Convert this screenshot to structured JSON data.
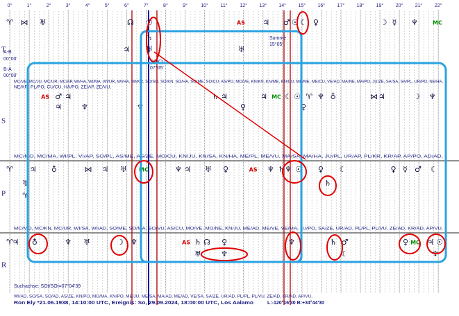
{
  "scale_ticks": [
    {
      "value": 0,
      "label": "0°"
    },
    {
      "value": 1,
      "label": "1°"
    },
    {
      "value": 2,
      "label": "2°"
    },
    {
      "value": 3,
      "label": "3°"
    },
    {
      "value": 4,
      "label": "4°"
    },
    {
      "value": 5,
      "label": "5°"
    },
    {
      "value": 6,
      "label": "6°"
    },
    {
      "value": 7,
      "label": "7°"
    },
    {
      "value": 8,
      "label": "8°"
    },
    {
      "value": 9,
      "label": "9°"
    },
    {
      "value": 10,
      "label": "10°"
    },
    {
      "value": 11,
      "label": "11°"
    },
    {
      "value": 12,
      "label": "12°"
    },
    {
      "value": 13,
      "label": "13°"
    },
    {
      "value": 14,
      "label": "14°"
    },
    {
      "value": 15,
      "label": "15°"
    },
    {
      "value": 16,
      "label": "16°"
    },
    {
      "value": 17,
      "label": "17°"
    },
    {
      "value": 18,
      "label": "18°"
    },
    {
      "value": 19,
      "label": "19°"
    },
    {
      "value": 20,
      "label": "20°"
    },
    {
      "value": 21,
      "label": "21°"
    },
    {
      "value": 22,
      "label": "22°"
    }
  ],
  "rows": [
    {
      "label": "T",
      "headers": [],
      "lines": [
        [
          {
            "symbol": "♈",
            "deg": 0
          },
          {
            "symbol": "⋈",
            "deg": 0.75
          },
          {
            "symbol": "♅",
            "deg": 1.7
          },
          {
            "symbol": "☊",
            "deg": 6.2
          },
          {
            "symbol": "☉",
            "deg": 7.17
          },
          {
            "symbol": "AS",
            "deg": 11.87,
            "color": "#d00000"
          },
          {
            "symbol": "♃",
            "deg": 13.16
          },
          {
            "symbol": "♂",
            "deg": 14.22
          },
          {
            "symbol": "☉",
            "deg": 14.65
          },
          {
            "symbol": "☾",
            "deg": 15.08
          },
          {
            "symbol": "♀",
            "deg": 15.72
          },
          {
            "symbol": "☽",
            "deg": 19.2
          },
          {
            "symbol": "☿",
            "deg": 19.75
          },
          {
            "symbol": "♆",
            "deg": 20.78
          },
          {
            "symbol": "MC",
            "deg": 21.96,
            "color": "#008a00"
          }
        ],
        [
          {
            "symbol": "♄",
            "deg": 7.17
          }
        ],
        [
          {
            "symbol": "♃",
            "deg": 6.0
          },
          {
            "symbol": "♅",
            "deg": 7.17
          },
          {
            "symbol": "♅",
            "deg": 11.9
          }
        ]
      ]
    },
    {
      "label": "S",
      "headers": [
        "MC/VE, MC/JU, MC/UR, MC/AP, WI/HA, WI/MA, WI/UR, WI/HA, WI/KR, SO/SO, SO/KN, SO/HA, SO/ME, SO/CU, AS/PO, MO/VE, KN/KN, KN/ME, KN/CU, ME/ME, ME/CU, VE/AD, MA/NE, MA/PO, JU/ZE, SA/SA, SA/PL, UR/PO, NE/HA,",
        "NE/KR, PL/PO, CU/CU, HA/PO, ZE/AP, ZE/VU,"
      ],
      "lines": [
        [
          {
            "symbol": "AS",
            "deg": 1.82,
            "color": "#d00000"
          },
          {
            "symbol": "♂",
            "deg": 2.5
          },
          {
            "symbol": "♃",
            "deg": 3.0
          },
          {
            "symbol": "♄",
            "deg": 10.55
          },
          {
            "symbol": "♃",
            "deg": 11.02
          },
          {
            "symbol": "♃",
            "deg": 13.05
          },
          {
            "symbol": "MC",
            "deg": 13.69,
            "color": "#008a00"
          },
          {
            "symbol": "☾",
            "deg": 14.3
          },
          {
            "symbol": "☉",
            "deg": 14.76
          },
          {
            "symbol": "♈",
            "deg": 15.37
          },
          {
            "symbol": "♆",
            "deg": 15.97
          },
          {
            "symbol": "♁",
            "deg": 16.6
          },
          {
            "symbol": "⋈",
            "deg": 18.7
          },
          {
            "symbol": "♃",
            "deg": 19.1
          },
          {
            "symbol": "☽",
            "deg": 20.9
          },
          {
            "symbol": "♆",
            "deg": 21.7
          }
        ],
        [
          {
            "symbol": "♃",
            "deg": 2.5
          },
          {
            "symbol": "♆",
            "deg": 3.85
          },
          {
            "symbol": "♆",
            "deg": 6.7
          },
          {
            "symbol": "♀",
            "deg": 11.98
          },
          {
            "symbol": "♀",
            "deg": 15.08
          }
        ]
      ]
    },
    {
      "label": "P",
      "headers": [
        "MC/MO, MC/MA, WI/PL, VI/AP, SO/PL, AS/ME, AS/ZE, MO/CU, KN/JU, KN/SA, KN/HA, ME/PL, ME/VU, MA/SA, MA/HA, JU/PL, UR/AP, PL/KR, KR/AP, AP/PO, AD/AD,"
      ],
      "lines": [
        [
          {
            "symbol": "♈",
            "deg": 0
          },
          {
            "symbol": "♃",
            "deg": 1.2
          },
          {
            "symbol": "♁",
            "deg": 2.28
          },
          {
            "symbol": "⋈",
            "deg": 4.03
          },
          {
            "symbol": "♃",
            "deg": 4.9
          },
          {
            "symbol": "♅",
            "deg": 5.85
          },
          {
            "symbol": "MC",
            "deg": 6.88,
            "color": "#008a00"
          },
          {
            "symbol": "♆",
            "deg": 8.66
          },
          {
            "symbol": "♃",
            "deg": 9.13
          },
          {
            "symbol": "♅",
            "deg": 10.2
          },
          {
            "symbol": "♀",
            "deg": 11.09
          },
          {
            "symbol": "AS",
            "deg": 12.5,
            "color": "#d00000"
          },
          {
            "symbol": "♆",
            "deg": 13.4
          },
          {
            "symbol": "♄",
            "deg": 13.94
          },
          {
            "symbol": "♆",
            "deg": 14.3
          },
          {
            "symbol": "☉",
            "deg": 14.83
          },
          {
            "symbol": "♀",
            "deg": 15.97
          },
          {
            "symbol": "☾",
            "deg": 17.1
          },
          {
            "symbol": "♀",
            "deg": 19.7
          },
          {
            "symbol": "☿",
            "deg": 20.3
          },
          {
            "symbol": "♂",
            "deg": 20.96
          },
          {
            "symbol": "☾",
            "deg": 21.78
          }
        ],
        [
          {
            "symbol": "♅",
            "deg": 0.82
          },
          {
            "symbol": "♄",
            "deg": 16.33
          }
        ],
        [
          {
            "symbol": "♈",
            "deg": 0.82
          }
        ]
      ]
    },
    {
      "label": "R",
      "headers": [
        "MC/MO, MC/KN, MC/UR, WI/SA, WI/AD, SO/ME, SO/MA, SO/VU, AS/CU, MO/VE, MO/NE, KN/JU, ME/AD, ME/VE, VE/MA, JU/PO, SA/ZE, UR/AD, PL/PL, PL/VU, ZE/AD, KR/AD, AP/VU,"
      ],
      "lines": [
        [
          {
            "symbol": "♈",
            "deg": 0
          },
          {
            "symbol": "♃",
            "deg": 0.3
          },
          {
            "symbol": "♁",
            "deg": 1.28
          },
          {
            "symbol": "♆",
            "deg": 3.0
          },
          {
            "symbol": "♅",
            "deg": 3.96
          },
          {
            "symbol": "☽",
            "deg": 5.67
          },
          {
            "symbol": "♆",
            "deg": 6.38
          },
          {
            "symbol": "AS",
            "deg": 9.06,
            "color": "#d00000"
          },
          {
            "symbol": "♄",
            "deg": 9.66
          },
          {
            "symbol": "☊",
            "deg": 10.12
          },
          {
            "symbol": "♀",
            "deg": 11.02
          },
          {
            "symbol": "♆",
            "deg": 14.47
          },
          {
            "symbol": "♄",
            "deg": 16.61
          },
          {
            "symbol": "♂",
            "deg": 17.2
          },
          {
            "symbol": "♀",
            "deg": 20.32
          },
          {
            "symbol": "MC",
            "deg": 20.82,
            "color": "#008a00"
          },
          {
            "symbol": "♃",
            "deg": 21.6
          },
          {
            "symbol": "☉",
            "deg": 22.07
          }
        ],
        [
          {
            "symbol": "♅",
            "deg": 9.66
          },
          {
            "symbol": "♆",
            "deg": 11.02
          },
          {
            "symbol": "☾",
            "deg": 17.2
          },
          {
            "symbol": "♆",
            "deg": 21.85
          }
        ]
      ]
    }
  ],
  "texts": {
    "ab": "A-B",
    "ab_value": "00°00'",
    "ba": "B-A",
    "ba_value": "00°00'",
    "sum": "Summe",
    "sum_value": "15°05'",
    "axis_point": "SO/CU",
    "axis_point_value": "07°05'",
    "search_axis": "Suchachse: SOt/SOt=07°04'39",
    "footer_mid": "WI/AD, SO/SA, SO/AD, AS/ZE, KN/PO, MO/MA, KN/PO, ME/JU, ME/SA, MA/AD, ME/AD, VE/SA, SA/ZE, UR/AD, PL/PL, PL/VU, ZE/AD, KR/AD, AP/VU,",
    "info": "Ron Ely   *21.06.1938, 14:10:00 UTC, Ereignis: So, 29.09.2024, 18:00:00 UTC, Los Aalamo",
    "coords": "L:-120°16'30 B:+34°44'30"
  }
}
